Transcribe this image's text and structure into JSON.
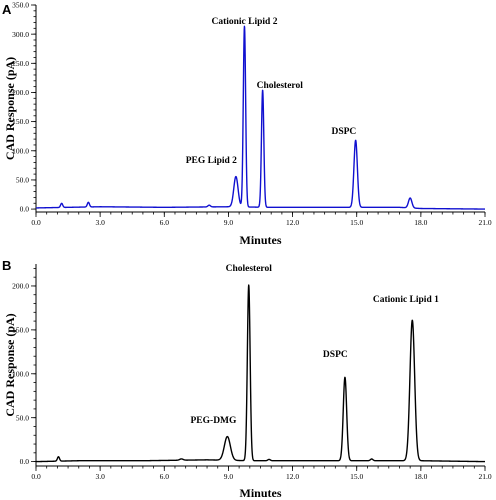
{
  "chart_data": [
    {
      "type": "line",
      "panel_label": "A",
      "color": "#1010d0",
      "xlabel": "Minutes",
      "ylabel": "CAD Response (pA)",
      "xlim": [
        0,
        21
      ],
      "ylim": [
        -5,
        350
      ],
      "x_ticks": [
        "0.0",
        "3.0",
        "6.0",
        "9.0",
        "12.0",
        "15.0",
        "18.0",
        "21.0"
      ],
      "x_tick_values": [
        0,
        3,
        6,
        9,
        12,
        15,
        18,
        21
      ],
      "minor_x_step": 0.5,
      "y_ticks": [
        "0.0",
        "50.0",
        "100.0",
        "150.0",
        "200.0",
        "250.0",
        "300.0",
        "350.0"
      ],
      "y_tick_values": [
        0,
        50,
        100,
        150,
        200,
        250,
        300,
        350
      ],
      "minor_y_step": 10,
      "baseline": [
        [
          0,
          2
        ],
        [
          3,
          4
        ],
        [
          6,
          3
        ],
        [
          9,
          4
        ],
        [
          11,
          3
        ],
        [
          14,
          3
        ],
        [
          17,
          3
        ],
        [
          18,
          1
        ],
        [
          21,
          0
        ]
      ],
      "peaks": [
        {
          "x": 1.2,
          "height": 7,
          "width": 0.05
        },
        {
          "x": 2.45,
          "height": 8,
          "width": 0.05
        },
        {
          "x": 8.1,
          "height": 3,
          "width": 0.06
        },
        {
          "x": 9.35,
          "height": 52,
          "width": 0.1
        },
        {
          "x": 9.75,
          "height": 310,
          "width": 0.055
        },
        {
          "x": 10.6,
          "height": 201,
          "width": 0.055
        },
        {
          "x": 14.95,
          "height": 115,
          "width": 0.08
        },
        {
          "x": 17.5,
          "height": 17,
          "width": 0.08
        }
      ],
      "annotations": [
        {
          "text": "Cationic Lipid 2",
          "x": 9.75,
          "y": 317
        },
        {
          "text": "Cholesterol",
          "x": 11.4,
          "y": 208
        },
        {
          "text": "DSPC",
          "x": 14.4,
          "y": 129
        },
        {
          "text": "PEG Lipid 2",
          "x": 8.2,
          "y": 79
        }
      ]
    },
    {
      "type": "line",
      "panel_label": "B",
      "color": "#000000",
      "xlabel": "Minutes",
      "ylabel": "CAD Response (pA)",
      "xlim": [
        0,
        21
      ],
      "ylim": [
        -5,
        225
      ],
      "x_ticks": [
        "0.0",
        "3.0",
        "6.0",
        "9.0",
        "12.0",
        "15.0",
        "18.0",
        "21.0"
      ],
      "x_tick_values": [
        0,
        3,
        6,
        9,
        12,
        15,
        18,
        21
      ],
      "minor_x_step": 0.5,
      "y_ticks": [
        "0.0",
        "50.0",
        "100.0",
        "150.0",
        "200.0"
      ],
      "y_tick_values": [
        0,
        50,
        100,
        150,
        200
      ],
      "minor_y_step": 10,
      "baseline": [
        [
          0,
          0
        ],
        [
          2,
          1
        ],
        [
          5,
          1
        ],
        [
          8,
          2
        ],
        [
          10,
          1
        ],
        [
          14,
          1
        ],
        [
          17,
          1
        ],
        [
          18,
          1
        ],
        [
          21,
          0
        ]
      ],
      "peaks": [
        {
          "x": 1.05,
          "height": 5,
          "width": 0.05
        },
        {
          "x": 6.8,
          "height": 1.5,
          "width": 0.08
        },
        {
          "x": 8.95,
          "height": 27,
          "width": 0.14
        },
        {
          "x": 9.95,
          "height": 200,
          "width": 0.065
        },
        {
          "x": 10.9,
          "height": 1.5,
          "width": 0.06
        },
        {
          "x": 14.45,
          "height": 95,
          "width": 0.08
        },
        {
          "x": 15.7,
          "height": 2,
          "width": 0.06
        },
        {
          "x": 17.6,
          "height": 160,
          "width": 0.11
        }
      ],
      "annotations": [
        {
          "text": "Cholesterol",
          "x": 9.95,
          "y": 217
        },
        {
          "text": "DSPC",
          "x": 14.0,
          "y": 119
        },
        {
          "text": "Cationic Lipid 1",
          "x": 17.3,
          "y": 182
        },
        {
          "text": "PEG-DMG",
          "x": 8.3,
          "y": 44
        }
      ]
    }
  ]
}
